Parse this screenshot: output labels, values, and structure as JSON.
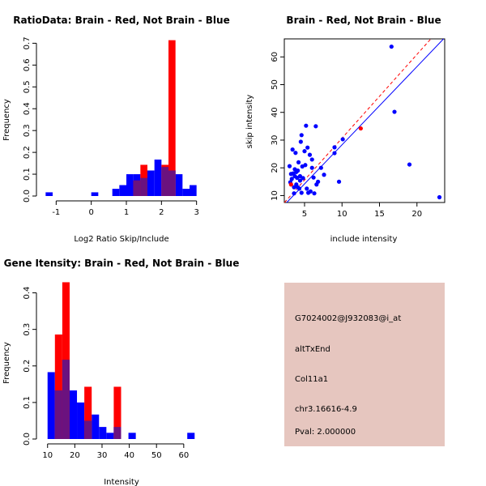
{
  "colors": {
    "red": "#ff0000",
    "blue": "#0000ff",
    "overlap": "#6b127f",
    "panel_bg": "#e6c6bf",
    "pval": "#c00000"
  },
  "chart_data": [
    {
      "type": "histogram",
      "title": "RatioData: Brain - Red, Not Brain - Blue",
      "xlabel": "Log2 Ratio Skip/Include",
      "ylabel": "Frequency",
      "xlim": [
        -1.4,
        3.1
      ],
      "ylim": [
        0,
        0.72
      ],
      "xticks": [
        -1,
        0,
        1,
        2,
        3
      ],
      "yticks": [
        0.0,
        0.1,
        0.2,
        0.3,
        0.4,
        0.5,
        0.6,
        0.7
      ],
      "bin_width": 0.2,
      "series": [
        {
          "name": "Not Brain",
          "color": "blue",
          "bins": [
            {
              "x0": -1.3,
              "value": 0.017
            },
            {
              "x0": 0.0,
              "value": 0.017
            },
            {
              "x0": 0.6,
              "value": 0.033
            },
            {
              "x0": 0.8,
              "value": 0.05
            },
            {
              "x0": 1.0,
              "value": 0.1
            },
            {
              "x0": 1.2,
              "value": 0.1
            },
            {
              "x0": 1.4,
              "value": 0.083
            },
            {
              "x0": 1.6,
              "value": 0.117
            },
            {
              "x0": 1.8,
              "value": 0.167
            },
            {
              "x0": 2.0,
              "value": 0.133
            },
            {
              "x0": 2.2,
              "value": 0.117
            },
            {
              "x0": 2.4,
              "value": 0.1
            },
            {
              "x0": 2.6,
              "value": 0.033
            },
            {
              "x0": 2.8,
              "value": 0.05
            }
          ]
        },
        {
          "name": "Brain",
          "color": "red",
          "bins": [
            {
              "x0": 1.2,
              "value": 0.071
            },
            {
              "x0": 1.4,
              "value": 0.143
            },
            {
              "x0": 2.0,
              "value": 0.143
            },
            {
              "x0": 2.2,
              "value": 0.714
            }
          ]
        }
      ]
    },
    {
      "type": "scatter",
      "title": "Brain - Red, Not Brain - Blue",
      "xlabel": "include intensity",
      "ylabel": "skip intensity",
      "xlim": [
        2.3,
        23.7
      ],
      "ylim": [
        7.5,
        66.5
      ],
      "xticks": [
        5,
        10,
        15,
        20
      ],
      "yticks": [
        10,
        20,
        30,
        40,
        50,
        60
      ],
      "series": [
        {
          "name": "Not Brain",
          "color": "blue",
          "points": [
            [
              3.0,
              20.6
            ],
            [
              3.1,
              14.8
            ],
            [
              3.2,
              17.8
            ],
            [
              3.3,
              16.0
            ],
            [
              3.4,
              26.6
            ],
            [
              3.5,
              18.0
            ],
            [
              3.6,
              13.0
            ],
            [
              3.6,
              10.8
            ],
            [
              3.7,
              17.0
            ],
            [
              3.7,
              19.5
            ],
            [
              3.8,
              25.4
            ],
            [
              3.9,
              14.0
            ],
            [
              3.9,
              18.5
            ],
            [
              4.0,
              16.4
            ],
            [
              4.1,
              13.0
            ],
            [
              4.1,
              19.0
            ],
            [
              4.2,
              22.0
            ],
            [
              4.3,
              12.5
            ],
            [
              4.4,
              15.4
            ],
            [
              4.4,
              17.0
            ],
            [
              4.5,
              29.4
            ],
            [
              4.6,
              31.8
            ],
            [
              4.6,
              11.0
            ],
            [
              4.7,
              20.5
            ],
            [
              4.8,
              16.3
            ],
            [
              5.0,
              26.0
            ],
            [
              5.1,
              21.0
            ],
            [
              5.2,
              35.2
            ],
            [
              5.3,
              12.5
            ],
            [
              5.4,
              27.3
            ],
            [
              5.5,
              11.0
            ],
            [
              5.7,
              24.7
            ],
            [
              5.8,
              11.5
            ],
            [
              6.0,
              23.0
            ],
            [
              6.0,
              20.0
            ],
            [
              6.2,
              16.5
            ],
            [
              6.3,
              10.8
            ],
            [
              6.5,
              35.0
            ],
            [
              6.6,
              14.0
            ],
            [
              6.8,
              15.0
            ],
            [
              7.2,
              20.0
            ],
            [
              7.6,
              17.5
            ],
            [
              9.0,
              25.3
            ],
            [
              9.0,
              27.4
            ],
            [
              9.6,
              15.0
            ],
            [
              10.1,
              30.3
            ],
            [
              16.6,
              63.7
            ],
            [
              17.0,
              40.2
            ],
            [
              19.0,
              21.2
            ],
            [
              23.0,
              9.4
            ]
          ]
        },
        {
          "name": "Brain",
          "color": "red",
          "points": [
            [
              3.2,
              14.0
            ],
            [
              12.5,
              34.2
            ]
          ]
        }
      ],
      "fit_lines": [
        {
          "color": "red",
          "style": "dashed",
          "intercept": 0.5,
          "slope": 3.02
        },
        {
          "color": "blue",
          "style": "solid",
          "intercept": 0.1,
          "slope": 2.82
        }
      ]
    },
    {
      "type": "histogram",
      "title": "Gene Itensity: Brain - Red, Not Brain - Blue",
      "xlabel": "Intensity",
      "ylabel": "Frequency",
      "xlim": [
        8,
        66
      ],
      "ylim": [
        0,
        0.43
      ],
      "xticks": [
        10,
        20,
        30,
        40,
        50,
        60
      ],
      "yticks": [
        0.0,
        0.1,
        0.2,
        0.3,
        0.4
      ],
      "bin_width": 2.7,
      "series": [
        {
          "name": "Not Brain",
          "color": "blue",
          "bins": [
            {
              "x0": 10.0,
              "value": 0.183
            },
            {
              "x0": 12.7,
              "value": 0.133
            },
            {
              "x0": 15.4,
              "value": 0.217
            },
            {
              "x0": 18.1,
              "value": 0.133
            },
            {
              "x0": 20.8,
              "value": 0.1
            },
            {
              "x0": 23.5,
              "value": 0.05
            },
            {
              "x0": 26.2,
              "value": 0.067
            },
            {
              "x0": 28.9,
              "value": 0.033
            },
            {
              "x0": 31.6,
              "value": 0.017
            },
            {
              "x0": 34.3,
              "value": 0.033
            },
            {
              "x0": 39.7,
              "value": 0.017
            },
            {
              "x0": 61.3,
              "value": 0.017
            }
          ]
        },
        {
          "name": "Brain",
          "color": "red",
          "bins": [
            {
              "x0": 12.7,
              "value": 0.286
            },
            {
              "x0": 15.4,
              "value": 0.429
            },
            {
              "x0": 23.5,
              "value": 0.143
            },
            {
              "x0": 34.3,
              "value": 0.143
            }
          ]
        }
      ]
    }
  ],
  "info_panel": {
    "probe_id": "G7024002@J932083@i_at",
    "event_type": "altTxEnd",
    "gene": "Col11a1",
    "location": "chr3.16616-4.9",
    "pval": "Pval: 2.000000"
  }
}
